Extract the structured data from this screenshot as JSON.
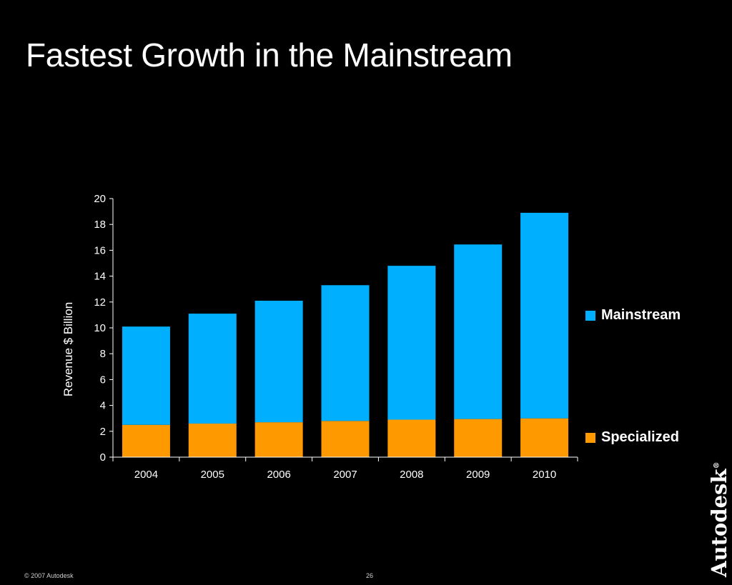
{
  "slide": {
    "title": "Fastest Growth in the Mainstream",
    "footer_copyright": "© 2007 Autodesk",
    "page_number": "26",
    "logo_text": "Autodesk",
    "logo_registered": "®"
  },
  "chart_data": {
    "type": "bar",
    "stacked": true,
    "title": "",
    "xlabel": "",
    "ylabel": "Revenue  $ Billion",
    "ylim": [
      0,
      20
    ],
    "yticks": [
      0,
      2,
      4,
      6,
      8,
      10,
      12,
      14,
      16,
      18,
      20
    ],
    "grid": false,
    "legend_position": "right",
    "categories": [
      "2004",
      "2005",
      "2006",
      "2007",
      "2008",
      "2009",
      "2010"
    ],
    "series": [
      {
        "name": "Specialized",
        "color": "#FF9900",
        "values": [
          2.5,
          2.6,
          2.7,
          2.8,
          2.9,
          2.95,
          3.0
        ]
      },
      {
        "name": "Mainstream",
        "color": "#00B0FF",
        "values": [
          7.6,
          8.5,
          9.4,
          10.5,
          11.9,
          13.5,
          15.9
        ]
      }
    ]
  }
}
